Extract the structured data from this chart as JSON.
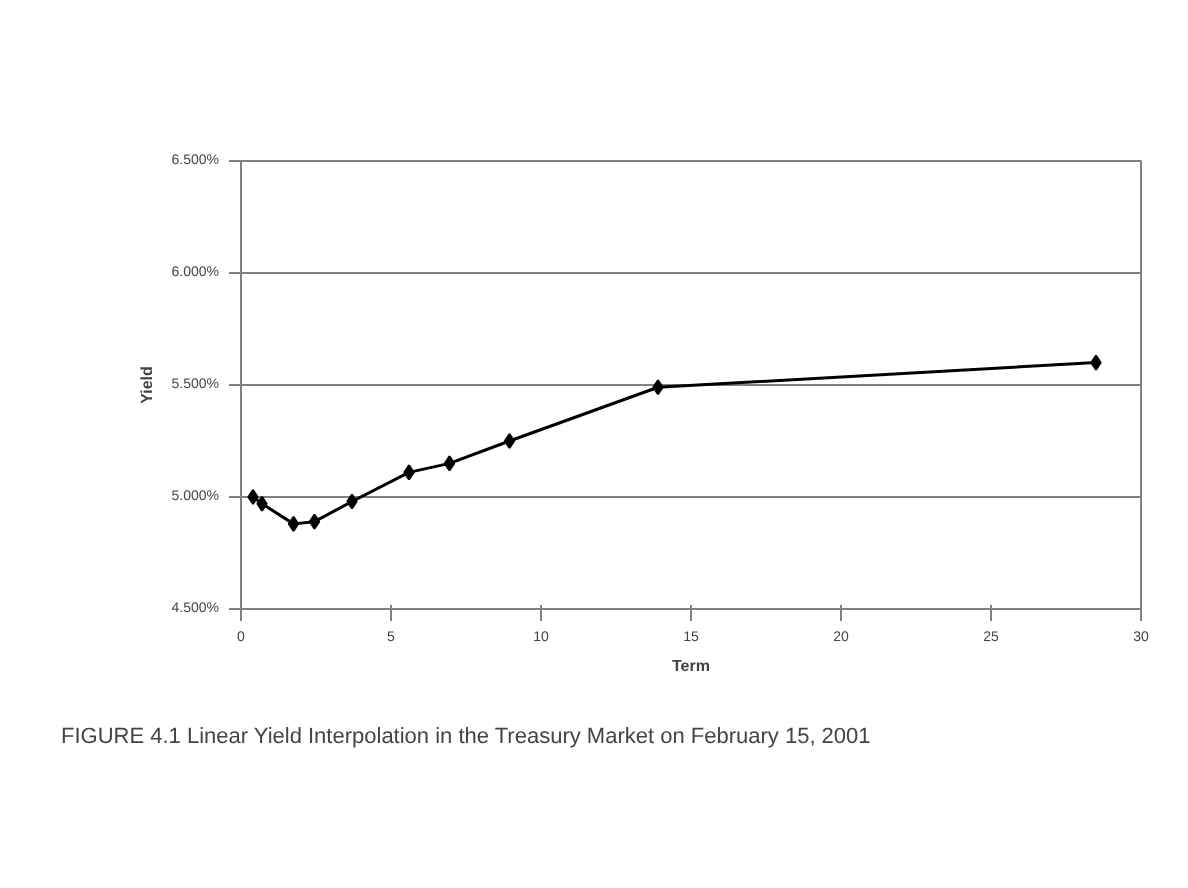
{
  "chart_data": {
    "type": "line",
    "xlabel": "Term",
    "ylabel": "Yield",
    "x": [
      0.4,
      0.7,
      1.75,
      2.45,
      3.7,
      5.6,
      6.95,
      8.95,
      13.9,
      28.5
    ],
    "series": [
      {
        "color": "#000000",
        "values": [
          5.0,
          4.97,
          4.88,
          4.89,
          4.98,
          5.11,
          5.15,
          5.25,
          5.49,
          5.6
        ]
      }
    ],
    "xlim": [
      0,
      30
    ],
    "xticks": [
      0,
      5,
      10,
      15,
      20,
      25,
      30
    ],
    "ylim": [
      4.5,
      6.5
    ],
    "yticks": [
      {
        "value": 4.5,
        "label": "4.500%"
      },
      {
        "value": 5.0,
        "label": "5.000%"
      },
      {
        "value": 5.5,
        "label": "5.500%"
      },
      {
        "value": 6.0,
        "label": "6.000%"
      },
      {
        "value": 6.5,
        "label": "6.500%"
      }
    ],
    "grid": "y",
    "marker": "diamond",
    "line_style": "solid",
    "annotations": [
      "FIGURE 4.1 Linear Yield Interpolation in the Treasury Market on February 15, 2001"
    ]
  }
}
